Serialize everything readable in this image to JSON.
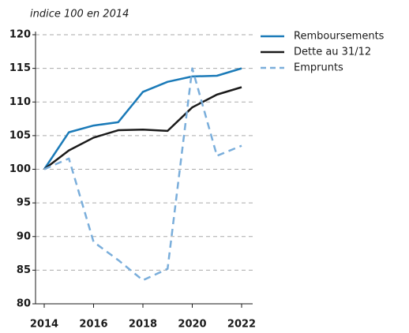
{
  "chart_data": {
    "type": "line",
    "subtitle": "indice 100 en 2014",
    "x": [
      2014,
      2015,
      2016,
      2017,
      2018,
      2019,
      2020,
      2021,
      2022
    ],
    "series": [
      {
        "name": "Remboursements",
        "color": "#1a7ab8",
        "dashed": false,
        "values": [
          100,
          105.5,
          106.5,
          107,
          111.5,
          113,
          113.8,
          113.9,
          115
        ]
      },
      {
        "name": "Dette au 31/12",
        "color": "#1a1a1a",
        "dashed": false,
        "values": [
          100,
          102.8,
          104.7,
          105.8,
          105.9,
          105.7,
          109.2,
          111.1,
          112.2
        ]
      },
      {
        "name": "Emprunts",
        "color": "#7aaedb",
        "dashed": true,
        "values": [
          100,
          101.6,
          89.2,
          86.5,
          83.5,
          85.2,
          115,
          102,
          103.5
        ]
      }
    ],
    "xlim": [
      2014,
      2022
    ],
    "xticks": [
      2014,
      2016,
      2018,
      2020,
      2022
    ],
    "ylim": [
      80,
      120
    ],
    "yticks": [
      80,
      85,
      90,
      95,
      100,
      105,
      110,
      115,
      120
    ],
    "grid": true,
    "legend": "top-right"
  }
}
